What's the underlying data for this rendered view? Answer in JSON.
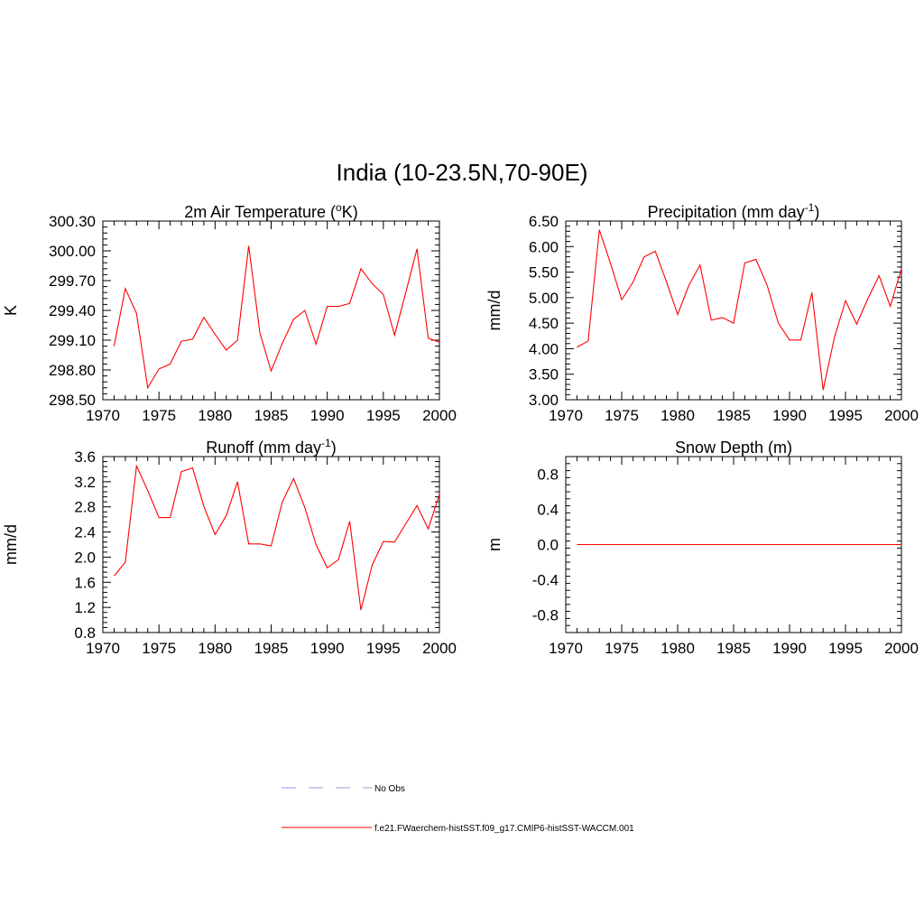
{
  "figure": {
    "title": "India (10-23.5N,70-90E)"
  },
  "legend": {
    "entries": [
      {
        "label": "No Obs",
        "style": "dashed",
        "color": "#9999dd"
      },
      {
        "label": "f.e21.FWaerchem-histSST.f09_g17.CMIP6-histSST-WACCM.001",
        "style": "solid",
        "color": "#ff0000"
      }
    ]
  },
  "chart_data": [
    {
      "type": "line",
      "title": "2m Air Temperature (oK)",
      "title_parts": {
        "pre": "2m Air Temperature (",
        "sup": "o",
        "post": "K)"
      },
      "xlabel": "",
      "ylabel": "K",
      "xlim": [
        1970,
        2000
      ],
      "ylim": [
        298.5,
        300.3
      ],
      "xticks": [
        "1970",
        "1975",
        "1980",
        "1985",
        "1990",
        "1995",
        "2000"
      ],
      "yticks": [
        "298.50",
        "298.80",
        "299.10",
        "299.40",
        "299.70",
        "300.00",
        "300.30"
      ],
      "x": [
        1971,
        1972,
        1973,
        1974,
        1975,
        1976,
        1977,
        1978,
        1979,
        1980,
        1981,
        1982,
        1983,
        1984,
        1985,
        1986,
        1987,
        1988,
        1989,
        1990,
        1991,
        1992,
        1993,
        1994,
        1995,
        1996,
        1997,
        1998,
        1999,
        2000
      ],
      "series": [
        {
          "name": "f.e21.FWaerchem-histSST.f09_g17.CMIP6-histSST-WACCM.001",
          "color": "#ff0000",
          "values": [
            299.04,
            299.62,
            299.37,
            298.62,
            298.81,
            298.86,
            299.09,
            299.11,
            299.33,
            299.16,
            299.0,
            299.1,
            300.05,
            299.17,
            298.79,
            299.07,
            299.31,
            299.4,
            299.06,
            299.44,
            299.44,
            299.47,
            299.82,
            299.67,
            299.56,
            299.15,
            299.58,
            300.02,
            299.12,
            299.08
          ]
        }
      ]
    },
    {
      "type": "line",
      "title": "Precipitation (mm day-1)",
      "title_parts": {
        "pre": "Precipitation (mm day",
        "sup": "-1",
        "post": ")"
      },
      "xlabel": "",
      "ylabel": "mm/d",
      "xlim": [
        1970,
        2000
      ],
      "ylim": [
        3.0,
        6.5
      ],
      "xticks": [
        "1970",
        "1975",
        "1980",
        "1985",
        "1990",
        "1995",
        "2000"
      ],
      "yticks": [
        "3.00",
        "3.50",
        "4.00",
        "4.50",
        "5.00",
        "5.50",
        "6.00",
        "6.50"
      ],
      "x": [
        1971,
        1972,
        1973,
        1974,
        1975,
        1976,
        1977,
        1978,
        1979,
        1980,
        1981,
        1982,
        1983,
        1984,
        1985,
        1986,
        1987,
        1988,
        1989,
        1990,
        1991,
        1992,
        1993,
        1994,
        1995,
        1996,
        1997,
        1998,
        1999,
        2000
      ],
      "series": [
        {
          "name": "f.e21.FWaerchem-histSST.f09_g17.CMIP6-histSST-WACCM.001",
          "color": "#ff0000",
          "values": [
            4.03,
            4.15,
            6.33,
            5.67,
            4.96,
            5.3,
            5.8,
            5.91,
            5.31,
            4.67,
            5.24,
            5.64,
            4.56,
            4.61,
            4.5,
            5.68,
            5.75,
            5.24,
            4.5,
            4.17,
            4.17,
            5.1,
            3.19,
            4.21,
            4.94,
            4.48,
            4.98,
            5.43,
            4.83,
            5.57
          ]
        }
      ]
    },
    {
      "type": "line",
      "title": "Runoff (mm day-1)",
      "title_parts": {
        "pre": "Runoff (mm day",
        "sup": "-1",
        "post": ")"
      },
      "xlabel": "",
      "ylabel": "mm/d",
      "xlim": [
        1970,
        2000
      ],
      "ylim": [
        0.8,
        3.6
      ],
      "xticks": [
        "1970",
        "1975",
        "1980",
        "1985",
        "1990",
        "1995",
        "2000"
      ],
      "yticks": [
        "0.8",
        "1.2",
        "1.6",
        "2.0",
        "2.4",
        "2.8",
        "3.2",
        "3.6"
      ],
      "x": [
        1971,
        1972,
        1973,
        1974,
        1975,
        1976,
        1977,
        1978,
        1979,
        1980,
        1981,
        1982,
        1983,
        1984,
        1985,
        1986,
        1987,
        1988,
        1989,
        1990,
        1991,
        1992,
        1993,
        1994,
        1995,
        1996,
        1997,
        1998,
        1999,
        2000
      ],
      "series": [
        {
          "name": "f.e21.FWaerchem-histSST.f09_g17.CMIP6-histSST-WACCM.001",
          "color": "#ff0000",
          "values": [
            1.7,
            1.92,
            3.45,
            3.06,
            2.63,
            2.63,
            3.36,
            3.42,
            2.81,
            2.36,
            2.66,
            3.2,
            2.21,
            2.21,
            2.18,
            2.88,
            3.25,
            2.79,
            2.2,
            1.83,
            1.96,
            2.57,
            1.16,
            1.87,
            2.25,
            2.24,
            2.53,
            2.82,
            2.45,
            3.0
          ]
        }
      ]
    },
    {
      "type": "line",
      "title": "Snow Depth (m)",
      "title_parts": {
        "pre": "Snow Depth (m)",
        "sup": "",
        "post": ""
      },
      "xlabel": "",
      "ylabel": "m",
      "xlim": [
        1970,
        2000
      ],
      "ylim": [
        -1.0,
        1.0
      ],
      "xticks": [
        "1970",
        "1975",
        "1980",
        "1985",
        "1990",
        "1995",
        "2000"
      ],
      "yticks": [
        "-0.8",
        "-0.4",
        "0.0",
        "0.4",
        "0.8"
      ],
      "x": [
        1971,
        1972,
        1973,
        1974,
        1975,
        1976,
        1977,
        1978,
        1979,
        1980,
        1981,
        1982,
        1983,
        1984,
        1985,
        1986,
        1987,
        1988,
        1989,
        1990,
        1991,
        1992,
        1993,
        1994,
        1995,
        1996,
        1997,
        1998,
        1999,
        2000
      ],
      "series": [
        {
          "name": "f.e21.FWaerchem-histSST.f09_g17.CMIP6-histSST-WACCM.001",
          "color": "#ff0000",
          "values": [
            0,
            0,
            0,
            0,
            0,
            0,
            0,
            0,
            0,
            0,
            0,
            0,
            0,
            0,
            0,
            0,
            0,
            0,
            0,
            0,
            0,
            0,
            0,
            0,
            0,
            0,
            0,
            0,
            0,
            0
          ]
        }
      ]
    }
  ]
}
